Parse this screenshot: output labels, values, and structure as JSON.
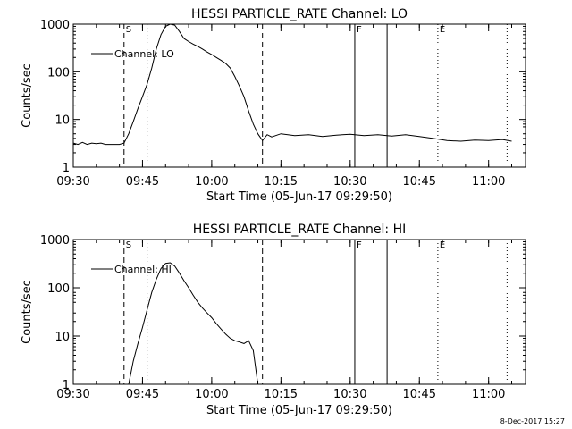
{
  "chart_data": [
    {
      "type": "line",
      "title": "HESSI PARTICLE_RATE Channel: LO",
      "xlabel": "Start Time (05-Jun-17 09:29:50)",
      "ylabel": "Counts/sec",
      "yscale": "log",
      "xlim": [
        "09:30",
        "11:08"
      ],
      "ylim": [
        1,
        1000
      ],
      "x_ticks": [
        "09:30",
        "09:45",
        "10:00",
        "10:15",
        "10:30",
        "10:45",
        "11:00"
      ],
      "y_ticks": [
        "1",
        "10",
        "100",
        "1000"
      ],
      "legend": {
        "label": "Channel: LO",
        "position": "top-left"
      },
      "markers": [
        {
          "label": "S",
          "time": "09:41",
          "style": "dashed"
        },
        {
          "label": "",
          "time": "09:46",
          "style": "dotted"
        },
        {
          "label": "",
          "time": "10:11",
          "style": "dashed"
        },
        {
          "label": "F",
          "time": "10:31",
          "style": "solid"
        },
        {
          "label": "",
          "time": "10:38",
          "style": "solid"
        },
        {
          "label": "E",
          "time": "10:49",
          "style": "dotted"
        },
        {
          "label": "",
          "time": "11:04",
          "style": "dotted"
        }
      ],
      "series": [
        {
          "x": [
            "09:30",
            "09:31",
            "09:32",
            "09:33",
            "09:34",
            "09:35",
            "09:36",
            "09:37",
            "09:38",
            "09:39",
            "09:40",
            "09:41",
            "09:42",
            "09:43",
            "09:44",
            "09:45",
            "09:46",
            "09:47",
            "09:48",
            "09:49",
            "09:50",
            "09:51",
            "09:52",
            "09:53",
            "09:54",
            "09:55",
            "09:56",
            "09:57",
            "09:58",
            "09:59",
            "10:00",
            "10:01",
            "10:02",
            "10:03",
            "10:04",
            "10:05",
            "10:06",
            "10:07",
            "10:08",
            "10:09",
            "10:10",
            "10:11",
            "10:12",
            "10:13",
            "10:15",
            "10:18",
            "10:21",
            "10:24",
            "10:27",
            "10:30",
            "10:33",
            "10:36",
            "10:39",
            "10:42",
            "10:45",
            "10:48",
            "10:51",
            "10:54",
            "10:57",
            "11:00",
            "11:03",
            "11:05"
          ],
          "values": [
            3.2,
            3.0,
            3.3,
            3.0,
            3.2,
            3.1,
            3.2,
            3.0,
            3.0,
            3.0,
            3.0,
            3.2,
            5.0,
            9.0,
            17,
            30,
            55,
            120,
            300,
            600,
            900,
            1000,
            950,
            700,
            500,
            430,
            380,
            340,
            300,
            260,
            230,
            200,
            175,
            150,
            120,
            80,
            50,
            30,
            15,
            8,
            5,
            3.6,
            4.8,
            4.3,
            5.0,
            4.6,
            4.8,
            4.4,
            4.7,
            4.9,
            4.6,
            4.8,
            4.5,
            4.8,
            4.4,
            4.0,
            3.6,
            3.5,
            3.7,
            3.6,
            3.8,
            3.5
          ]
        }
      ]
    },
    {
      "type": "line",
      "title": "HESSI PARTICLE_RATE Channel: HI",
      "xlabel": "Start Time (05-Jun-17 09:29:50)",
      "ylabel": "Counts/sec",
      "yscale": "log",
      "xlim": [
        "09:30",
        "11:08"
      ],
      "ylim": [
        1,
        1000
      ],
      "x_ticks": [
        "09:30",
        "09:45",
        "10:00",
        "10:15",
        "10:30",
        "10:45",
        "11:00"
      ],
      "y_ticks": [
        "1",
        "10",
        "100",
        "1000"
      ],
      "legend": {
        "label": "Channel: HI",
        "position": "top-left"
      },
      "markers": [
        {
          "label": "S",
          "time": "09:41",
          "style": "dashed"
        },
        {
          "label": "",
          "time": "09:46",
          "style": "dotted"
        },
        {
          "label": "",
          "time": "10:11",
          "style": "dashed"
        },
        {
          "label": "F",
          "time": "10:31",
          "style": "solid"
        },
        {
          "label": "",
          "time": "10:38",
          "style": "solid"
        },
        {
          "label": "E",
          "time": "10:49",
          "style": "dotted"
        },
        {
          "label": "",
          "time": "11:04",
          "style": "dotted"
        }
      ],
      "series": [
        {
          "x": [
            "09:42",
            "09:43",
            "09:44",
            "09:45",
            "09:46",
            "09:47",
            "09:48",
            "09:49",
            "09:50",
            "09:51",
            "09:52",
            "09:53",
            "09:54",
            "09:55",
            "09:56",
            "09:57",
            "09:58",
            "09:59",
            "10:00",
            "10:01",
            "10:02",
            "10:03",
            "10:04",
            "10:05",
            "10:06",
            "10:07",
            "10:08",
            "10:09",
            "10:10"
          ],
          "values": [
            1.0,
            3.0,
            7.0,
            15,
            35,
            80,
            150,
            250,
            320,
            330,
            280,
            200,
            140,
            100,
            70,
            50,
            38,
            30,
            24,
            18,
            14,
            11,
            9,
            8,
            7.5,
            7,
            8,
            5,
            1.0
          ]
        }
      ]
    }
  ],
  "footer": {
    "timestamp": "8-Dec-2017 15:27"
  }
}
